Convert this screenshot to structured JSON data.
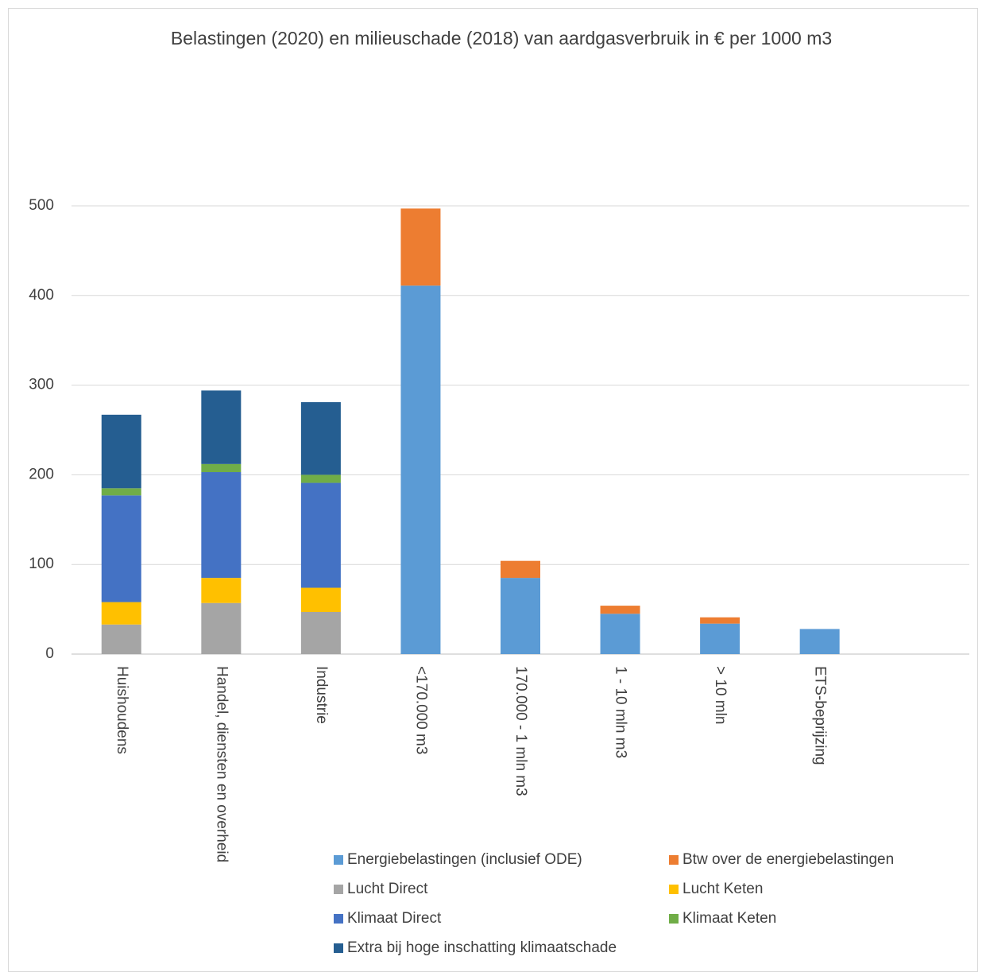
{
  "chart_data": {
    "type": "stacked_bar",
    "title": "Belastingen (2020) en milieuschade (2018) van aardgasverbruik in € per 1000 m3",
    "categories": [
      "Huishoudens",
      "Handel, diensten en overheid",
      "Industrie",
      "<170.000 m3",
      "170.000 - 1 mln m3",
      "1 - 10 mln m3",
      "> 10 mln",
      "ETS-beprijzing",
      null
    ],
    "series": [
      {
        "name": "Energiebelastingen (inclusief ODE)",
        "color": "#5b9bd5",
        "values": [
          null,
          null,
          null,
          411,
          85,
          45,
          34,
          28,
          null
        ]
      },
      {
        "name": "Btw over de energiebelastingen",
        "color": "#ed7d31",
        "values": [
          null,
          null,
          null,
          86,
          19,
          9,
          7,
          null,
          null
        ]
      },
      {
        "name": "Lucht Direct",
        "color": "#a5a5a5",
        "values": [
          33,
          57,
          47,
          null,
          null,
          null,
          null,
          null,
          null
        ]
      },
      {
        "name": "Lucht Keten",
        "color": "#ffc000",
        "values": [
          25,
          28,
          27,
          null,
          null,
          null,
          null,
          null,
          null
        ]
      },
      {
        "name": "Klimaat Direct",
        "color": "#4472c4",
        "values": [
          119,
          118,
          117,
          null,
          null,
          null,
          null,
          null,
          null
        ]
      },
      {
        "name": "Klimaat Keten",
        "color": "#70ad47",
        "values": [
          8,
          9,
          9,
          null,
          null,
          null,
          null,
          null,
          null
        ]
      },
      {
        "name": "Extra bij hoge inschatting klimaatschade",
        "color": "#255e91",
        "values": [
          82,
          82,
          81,
          null,
          null,
          null,
          null,
          null,
          null
        ]
      }
    ],
    "ylim": [
      0,
      500
    ],
    "yticks": [
      0,
      100,
      200,
      300,
      400,
      500
    ],
    "grid": true,
    "legend": "bottom-right"
  }
}
